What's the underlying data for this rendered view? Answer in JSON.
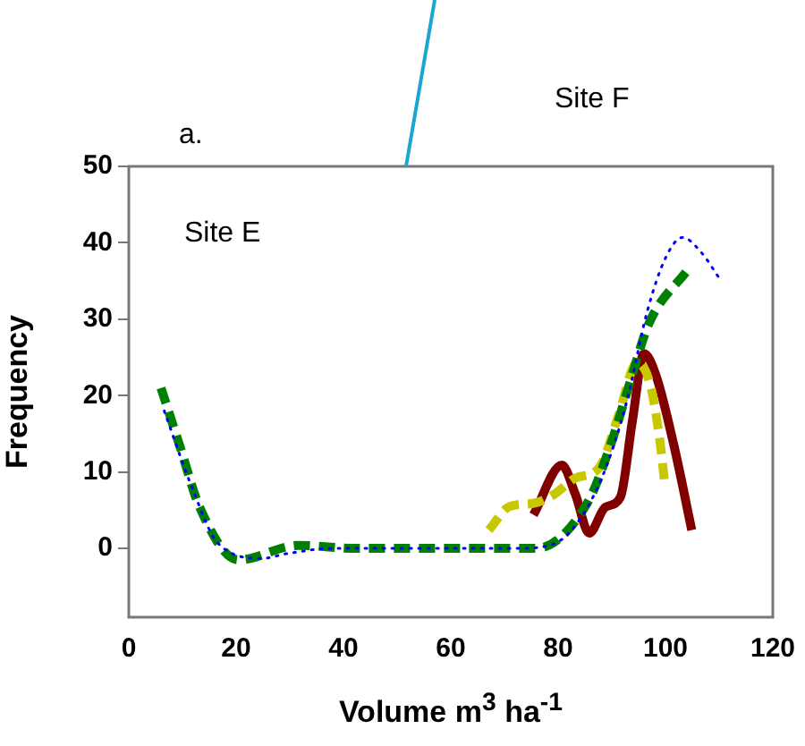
{
  "chart_data": {
    "type": "line",
    "xlabel": "Volume m$^{3}$ ha$^{-1}$",
    "ylabel": "Frequency",
    "annotations": [
      "a.",
      "Site E",
      "Site F"
    ],
    "xlim": [
      0,
      120
    ],
    "xticks": [
      0,
      20,
      40,
      60,
      80,
      100,
      120
    ],
    "ylim": [
      -9,
      50
    ],
    "yticks": [
      0,
      10,
      20,
      30,
      40,
      50
    ],
    "grid": false,
    "legend": false,
    "marker": "none",
    "series": [
      {
        "color": "#0000ff",
        "line_style": "dotted",
        "x": [
          6.6,
          11.6,
          16.6,
          24.9,
          29.3,
          38,
          50,
          60,
          71.6,
          77,
          82,
          88,
          92.7,
          96.6,
          100,
          103.2,
          106.6,
          110
        ],
        "values": [
          18,
          8.3,
          0.7,
          -1.3,
          -0.7,
          0,
          0,
          0,
          0,
          0.2,
          2,
          9,
          19,
          31,
          38,
          40.7,
          38.8,
          35.4
        ]
      },
      {
        "color": "#008000",
        "line_style": "dashed",
        "x": [
          6,
          9.6,
          13.2,
          20.4,
          31.6,
          42.7,
          53.8,
          64.9,
          75.8,
          85.4,
          89.9,
          93.2,
          96.9,
          104.3
        ],
        "values": [
          21,
          13.2,
          5.4,
          -1.5,
          0.4,
          0,
          0,
          0,
          0,
          5.9,
          13.8,
          21.3,
          29.4,
          36.6
        ]
      },
      {
        "color": "#c8c800",
        "line_style": "dashed",
        "x": [
          67.1,
          71,
          75.4,
          79.3,
          83.2,
          87.7,
          91.3,
          94.7,
          97.1,
          98.8,
          99.9
        ],
        "values": [
          2.4,
          5.5,
          5.9,
          7.1,
          9.2,
          10.6,
          17.5,
          24.3,
          21.6,
          14.9,
          8.3
        ]
      },
      {
        "color": "#800000",
        "line_style": "solid",
        "x": [
          75.4,
          80.7,
          83.2,
          85.8,
          88.8,
          91.6,
          93.8,
          96,
          98.2,
          101.6,
          104.9
        ],
        "values": [
          4.4,
          10.9,
          7.1,
          2,
          5.4,
          6.7,
          16.5,
          25.5,
          22.7,
          13.4,
          2.4
        ]
      }
    ]
  }
}
